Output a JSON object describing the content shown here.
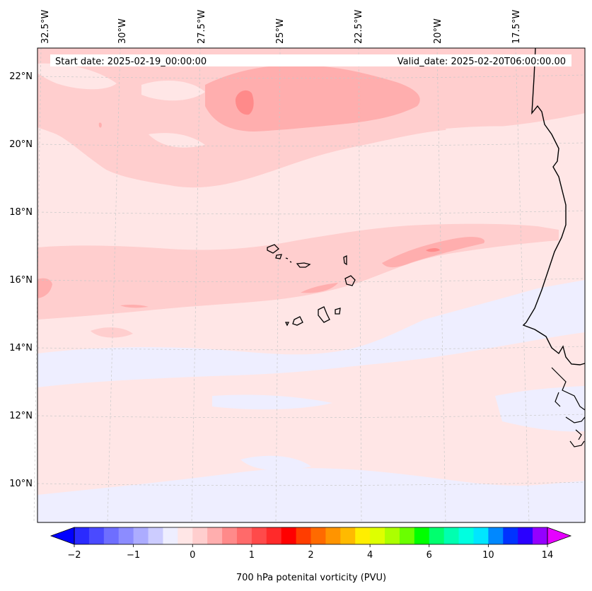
{
  "header": {
    "start_date": "Start date: 2025-02-19_00:00:00",
    "valid_date": "Valid_date: 2025-02-20T06:00:00.00"
  },
  "map": {
    "lon_labels": [
      "32.5°W",
      "30°W",
      "27.5°W",
      "25°W",
      "22.5°W",
      "20°W",
      "17.5°W"
    ],
    "lat_labels": [
      "22°N",
      "20°N",
      "18°N",
      "16°N",
      "14°N",
      "12°N",
      "10°N"
    ],
    "colors": {
      "background": "#ffe6e6",
      "negative_light": "#eeeeff",
      "positive_light": "#ffcece",
      "positive_medium": "#ffaeae",
      "positive_strong": "#ff8a8a",
      "coastline": "#000000",
      "gridline": "#c8c8c8"
    }
  },
  "colorbar": {
    "title": "700 hPa potenital vorticity (PVU)",
    "tick_labels": [
      "−2",
      "−1",
      "0",
      "1",
      "2",
      "4",
      "6",
      "10",
      "14"
    ],
    "colors": [
      "#0000ff",
      "#2a2aff",
      "#4a4aff",
      "#6e6eff",
      "#8c8cff",
      "#acacff",
      "#ccccff",
      "#eeeeff",
      "#ffe6e6",
      "#ffcece",
      "#ffaeae",
      "#ff8a8a",
      "#ff6a6a",
      "#ff4a4a",
      "#ff2a2a",
      "#ff0000",
      "#ff3d00",
      "#ff6a00",
      "#ff9400",
      "#ffba00",
      "#ffee00",
      "#deff00",
      "#acff00",
      "#6aff00",
      "#00ff00",
      "#00ff6e",
      "#00ffb0",
      "#00ffe0",
      "#00e6ff",
      "#0088ff",
      "#0033ff",
      "#2a00ff",
      "#9400ff",
      "#e600ff"
    ]
  }
}
